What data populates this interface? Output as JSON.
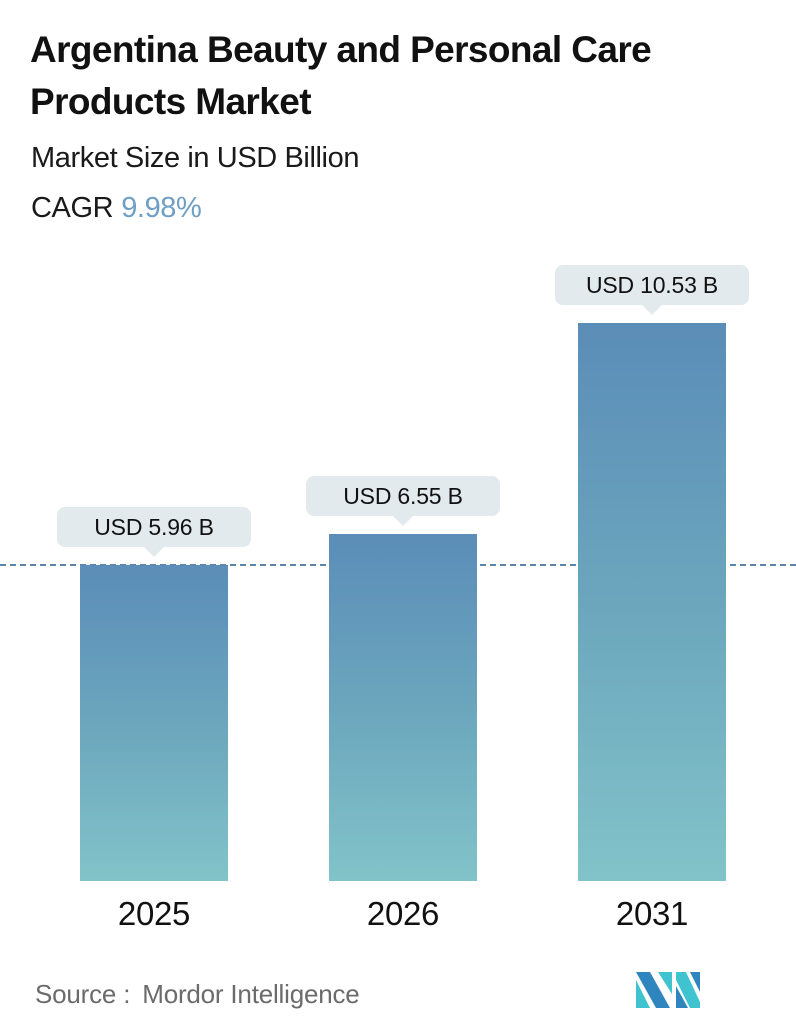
{
  "header": {
    "title": "Argentina Beauty and Personal Care Products Market",
    "subtitle": "Market Size in USD Billion",
    "cagr_label": "CAGR",
    "cagr_value": "9.98%"
  },
  "colors": {
    "bar_top": "#5b8db8",
    "bar_bottom": "#82c3c9",
    "cagr_accent": "#6f9fc4",
    "bubble_bg": "#e2eaee",
    "ref_line": "#5a85a8",
    "logo_dark": "#2f86bf",
    "logo_light": "#3fc4cf"
  },
  "bars": [
    {
      "year": "2025",
      "label": "USD 5.96 B",
      "value": 5.96
    },
    {
      "year": "2026",
      "label": "USD 6.55 B",
      "value": 6.55
    },
    {
      "year": "2031",
      "label": "USD 10.53 B",
      "value": 10.53
    }
  ],
  "footer": {
    "source_label": "Source :",
    "source_value": "Mordor Intelligence",
    "logo": "mordor-intelligence-logo"
  },
  "chart_data": {
    "type": "bar",
    "title": "Argentina Beauty and Personal Care Products Market",
    "subtitle": "Market Size in USD Billion",
    "annotation": "CAGR 9.98%",
    "categories": [
      "2025",
      "2026",
      "2031"
    ],
    "values": [
      5.96,
      6.55,
      10.53
    ],
    "data_labels": [
      "USD 5.96 B",
      "USD 6.55 B",
      "USD 10.53 B"
    ],
    "xlabel": "",
    "ylabel": "Market Size (USD Billion)",
    "reference_line": {
      "value": 5.96,
      "style": "dashed"
    },
    "grid": false,
    "legend": "none",
    "source": "Mordor Intelligence"
  }
}
